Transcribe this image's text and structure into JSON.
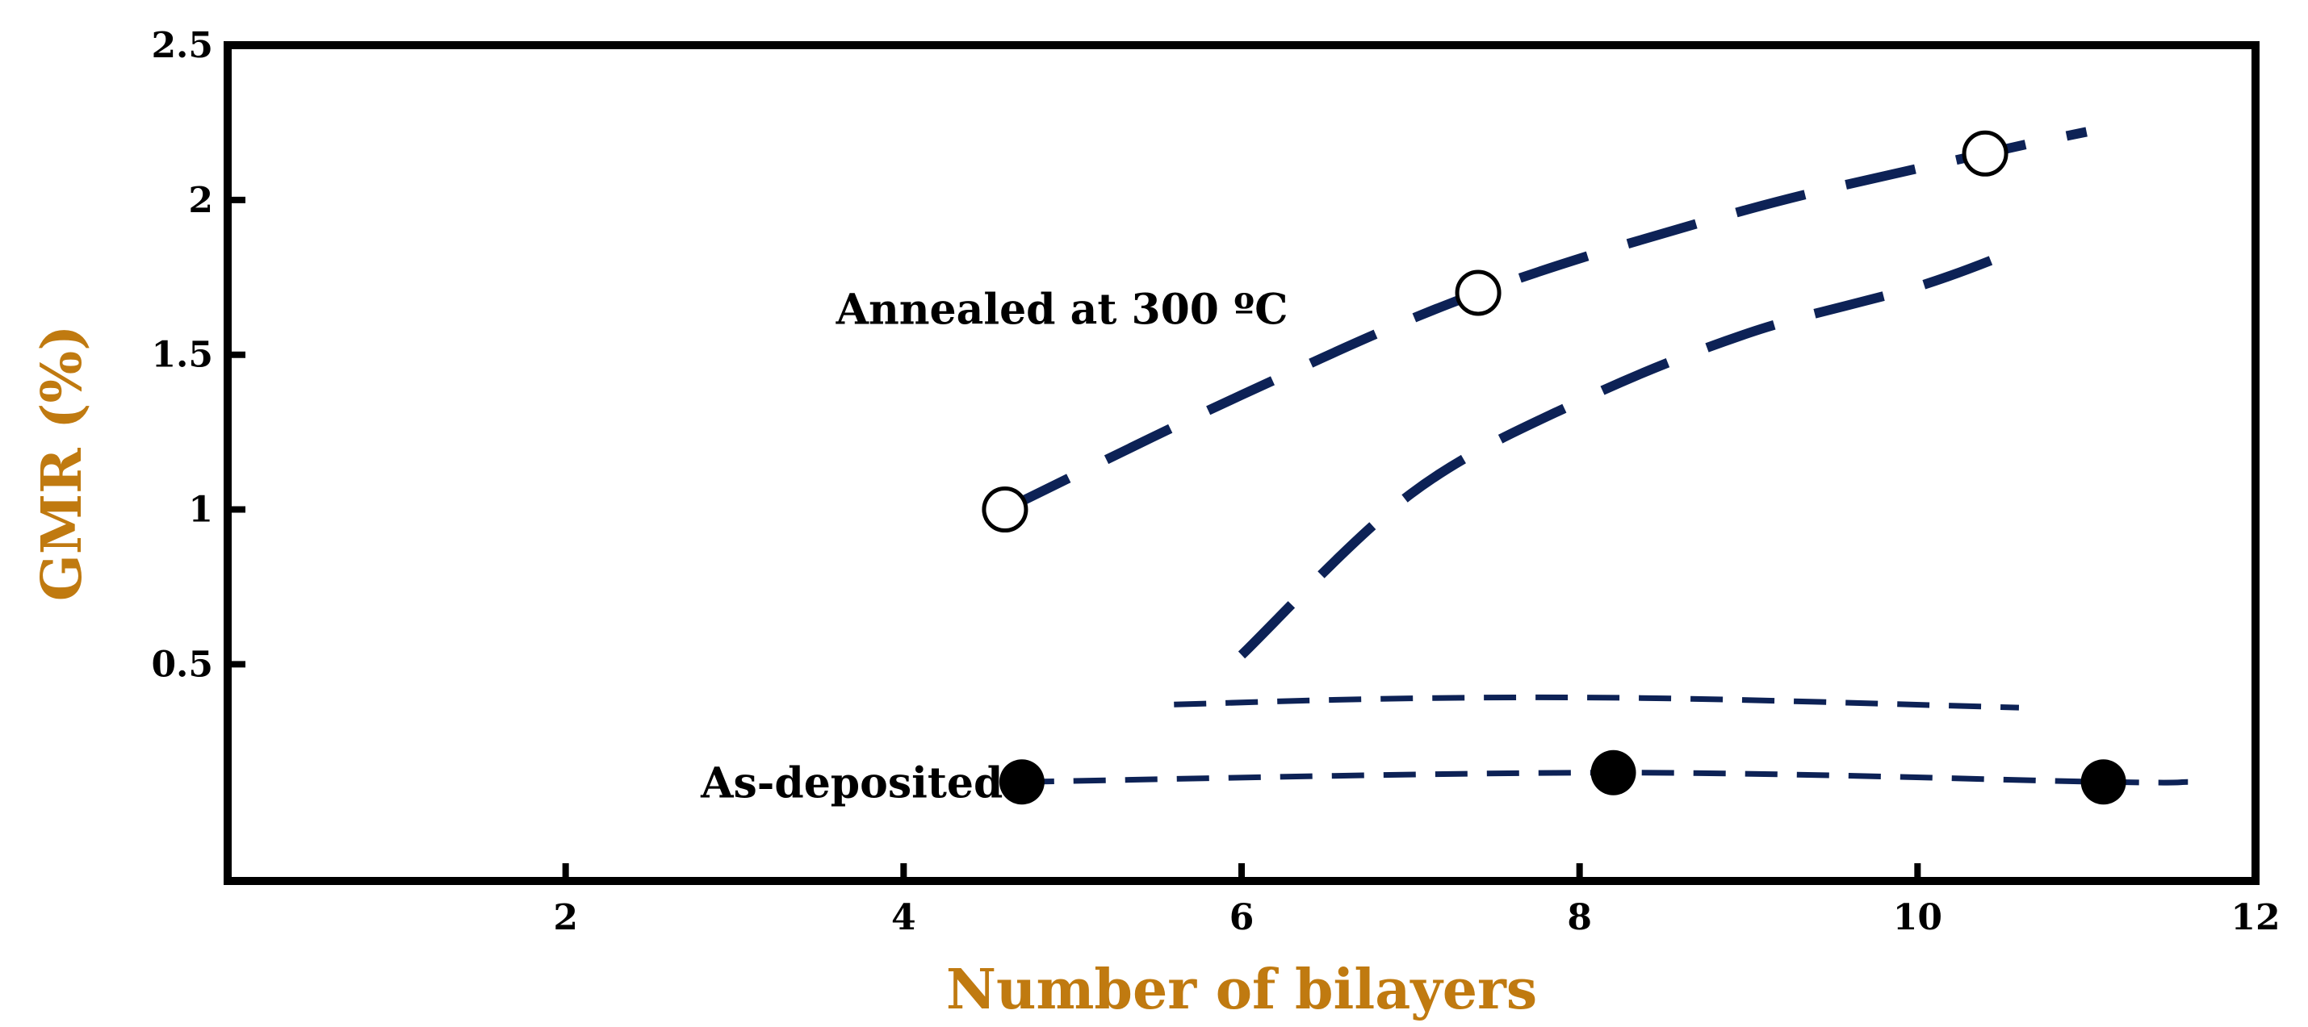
{
  "chart_data": {
    "type": "line",
    "xlabel": "Number of bilayers",
    "ylabel": "GMR (%)",
    "xlim": [
      0,
      12
    ],
    "ylim": [
      -0.2,
      2.5
    ],
    "x_ticks": [
      {
        "value": 2,
        "label": "2"
      },
      {
        "value": 4,
        "label": "4"
      },
      {
        "value": 6,
        "label": "6"
      },
      {
        "value": 8,
        "label": "8"
      },
      {
        "value": 10,
        "label": "10"
      },
      {
        "value": 12,
        "label": "12"
      }
    ],
    "y_ticks": [
      {
        "value": 0.5,
        "label": "0.5"
      },
      {
        "value": 1,
        "label": "1"
      },
      {
        "value": 1.5,
        "label": "1.5"
      },
      {
        "value": 2,
        "label": "2"
      },
      {
        "value": 2.5,
        "label": "2.5"
      }
    ],
    "grid": false,
    "axis_label_color": "#c07a10",
    "line_color": "#0d2256",
    "annotations": [
      {
        "text": "Annealed at 300 ºC",
        "x": 3.6,
        "y": 1.6
      },
      {
        "text": "As-deposited",
        "x": 2.8,
        "y": 0.07
      }
    ],
    "series": [
      {
        "marker": "open-circle",
        "dash": "long",
        "points": [
          [
            4.6,
            1.0
          ],
          [
            7.4,
            1.7
          ],
          [
            10.4,
            2.15
          ]
        ],
        "curve": [
          [
            4.6,
            1.0
          ],
          [
            6.0,
            1.37
          ],
          [
            7.4,
            1.7
          ],
          [
            9.0,
            1.97
          ],
          [
            10.4,
            2.15
          ],
          [
            11.0,
            2.22
          ]
        ]
      },
      {
        "marker": "none",
        "dash": "long",
        "points": [],
        "curve": [
          [
            6.0,
            0.53
          ],
          [
            7.0,
            1.05
          ],
          [
            8.0,
            1.35
          ],
          [
            9.0,
            1.57
          ],
          [
            10.0,
            1.72
          ],
          [
            10.6,
            1.84
          ]
        ]
      },
      {
        "marker": "none",
        "dash": "short",
        "points": [],
        "curve": [
          [
            5.6,
            0.37
          ],
          [
            7.0,
            0.39
          ],
          [
            8.5,
            0.39
          ],
          [
            10.6,
            0.36
          ]
        ]
      },
      {
        "marker": "filled-circle",
        "dash": "short",
        "points": [
          [
            4.7,
            0.12
          ],
          [
            8.2,
            0.15
          ],
          [
            11.1,
            0.12
          ]
        ],
        "curve": [
          [
            4.7,
            0.12
          ],
          [
            8.2,
            0.15
          ],
          [
            11.1,
            0.12
          ],
          [
            11.6,
            0.12
          ]
        ]
      }
    ]
  }
}
